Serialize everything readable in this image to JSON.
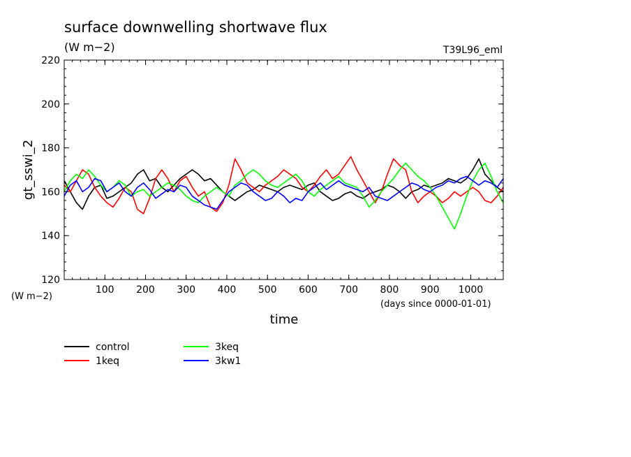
{
  "header": {
    "title": "surface downwelling shortwave flux",
    "units": "(W m−2)",
    "model": "T39L96_eml",
    "y_units_corner": "(W m−2)",
    "x_units_corner": "(days since 0000-01-01)"
  },
  "chart_data": {
    "type": "line",
    "title": "surface downwelling shortwave flux",
    "xlabel": "time",
    "ylabel": "gt_sswi_2",
    "xlim": [
      0,
      1080
    ],
    "ylim": [
      120,
      220
    ],
    "x_ticks": [
      100,
      200,
      300,
      400,
      500,
      600,
      700,
      800,
      900,
      1000
    ],
    "x_tick_labels": [
      "100",
      "200",
      "300",
      "400",
      "500",
      "600",
      "700",
      "800",
      "900",
      "1000"
    ],
    "y_ticks": [
      120,
      140,
      160,
      180,
      200,
      220
    ],
    "y_tick_labels": [
      "120",
      "140",
      "160",
      "180",
      "200",
      "220"
    ],
    "grid": false,
    "legend_position": "bottom-left",
    "series": [
      {
        "name": "control",
        "color": "#000000",
        "x": [
          0,
          15,
          30,
          45,
          60,
          75,
          90,
          105,
          120,
          135,
          150,
          165,
          180,
          195,
          210,
          225,
          240,
          255,
          270,
          285,
          300,
          315,
          330,
          345,
          360,
          375,
          390,
          405,
          420,
          435,
          450,
          465,
          480,
          495,
          510,
          525,
          540,
          555,
          570,
          585,
          600,
          615,
          630,
          645,
          660,
          675,
          690,
          705,
          720,
          735,
          750,
          765,
          780,
          795,
          810,
          825,
          840,
          855,
          870,
          885,
          900,
          915,
          930,
          945,
          960,
          975,
          990,
          1005,
          1020,
          1035,
          1050,
          1065,
          1080
        ],
        "values": [
          165,
          160,
          155,
          152,
          158,
          162,
          163,
          157,
          158,
          160,
          162,
          164,
          168,
          170,
          165,
          166,
          162,
          160,
          163,
          166,
          168,
          170,
          168,
          165,
          166,
          163,
          160,
          158,
          156,
          158,
          160,
          161,
          163,
          162,
          161,
          160,
          162,
          163,
          162,
          161,
          163,
          164,
          160,
          158,
          156,
          157,
          159,
          160,
          158,
          157,
          159,
          160,
          161,
          163,
          162,
          160,
          157,
          160,
          161,
          163,
          162,
          163,
          164,
          166,
          165,
          164,
          166,
          170,
          175,
          168,
          165,
          162,
          160
        ]
      },
      {
        "name": "1keq",
        "color": "#ff0000",
        "x": [
          0,
          15,
          30,
          45,
          60,
          75,
          90,
          105,
          120,
          135,
          150,
          165,
          180,
          195,
          210,
          225,
          240,
          255,
          270,
          285,
          300,
          315,
          330,
          345,
          360,
          375,
          390,
          405,
          420,
          435,
          450,
          465,
          480,
          495,
          510,
          525,
          540,
          555,
          570,
          585,
          600,
          615,
          630,
          645,
          660,
          675,
          690,
          705,
          720,
          735,
          750,
          765,
          780,
          795,
          810,
          825,
          840,
          855,
          870,
          885,
          900,
          915,
          930,
          945,
          960,
          975,
          990,
          1005,
          1020,
          1035,
          1050,
          1065,
          1080
        ],
        "values": [
          163,
          160,
          165,
          170,
          168,
          162,
          158,
          155,
          153,
          157,
          162,
          160,
          152,
          150,
          157,
          166,
          170,
          166,
          160,
          165,
          167,
          162,
          158,
          160,
          153,
          151,
          155,
          163,
          175,
          170,
          164,
          162,
          160,
          163,
          165,
          167,
          170,
          168,
          166,
          162,
          160,
          163,
          167,
          170,
          166,
          168,
          172,
          176,
          170,
          165,
          160,
          155,
          160,
          168,
          175,
          172,
          170,
          160,
          155,
          158,
          160,
          158,
          155,
          157,
          160,
          158,
          160,
          162,
          160,
          156,
          155,
          158,
          162
        ]
      },
      {
        "name": "3keq",
        "color": "#00ff00",
        "x": [
          0,
          15,
          30,
          45,
          60,
          75,
          90,
          105,
          120,
          135,
          150,
          165,
          180,
          195,
          210,
          225,
          240,
          255,
          270,
          285,
          300,
          315,
          330,
          345,
          360,
          375,
          390,
          405,
          420,
          435,
          450,
          465,
          480,
          495,
          510,
          525,
          540,
          555,
          570,
          585,
          600,
          615,
          630,
          645,
          660,
          675,
          690,
          705,
          720,
          735,
          750,
          765,
          780,
          795,
          810,
          825,
          840,
          855,
          870,
          885,
          900,
          915,
          930,
          945,
          960,
          975,
          990,
          1005,
          1020,
          1035,
          1050,
          1065,
          1080
        ],
        "values": [
          160,
          165,
          168,
          166,
          170,
          167,
          163,
          160,
          162,
          165,
          163,
          158,
          160,
          161,
          158,
          160,
          162,
          164,
          163,
          161,
          158,
          156,
          155,
          158,
          160,
          162,
          160,
          158,
          163,
          165,
          168,
          170,
          168,
          165,
          163,
          162,
          164,
          166,
          168,
          165,
          160,
          158,
          161,
          163,
          165,
          167,
          164,
          163,
          162,
          158,
          153,
          156,
          160,
          163,
          166,
          170,
          173,
          170,
          167,
          165,
          162,
          158,
          153,
          148,
          143,
          150,
          158,
          165,
          170,
          173,
          167,
          160,
          155
        ]
      },
      {
        "name": "3kw1",
        "color": "#0000ff",
        "x": [
          0,
          15,
          30,
          45,
          60,
          75,
          90,
          105,
          120,
          135,
          150,
          165,
          180,
          195,
          210,
          225,
          240,
          255,
          270,
          285,
          300,
          315,
          330,
          345,
          360,
          375,
          390,
          405,
          420,
          435,
          450,
          465,
          480,
          495,
          510,
          525,
          540,
          555,
          570,
          585,
          600,
          615,
          630,
          645,
          660,
          675,
          690,
          705,
          720,
          735,
          750,
          765,
          780,
          795,
          810,
          825,
          840,
          855,
          870,
          885,
          900,
          915,
          930,
          945,
          960,
          975,
          990,
          1005,
          1020,
          1035,
          1050,
          1065,
          1080
        ],
        "values": [
          158,
          163,
          165,
          160,
          162,
          166,
          165,
          160,
          162,
          164,
          160,
          158,
          162,
          164,
          161,
          157,
          159,
          161,
          160,
          163,
          162,
          158,
          156,
          154,
          153,
          152,
          156,
          160,
          162,
          164,
          163,
          160,
          158,
          156,
          157,
          160,
          158,
          155,
          157,
          156,
          160,
          162,
          164,
          161,
          163,
          165,
          163,
          162,
          161,
          160,
          162,
          158,
          157,
          156,
          158,
          160,
          162,
          164,
          163,
          161,
          160,
          162,
          163,
          165,
          164,
          166,
          167,
          165,
          163,
          165,
          164,
          162,
          166
        ]
      }
    ]
  }
}
